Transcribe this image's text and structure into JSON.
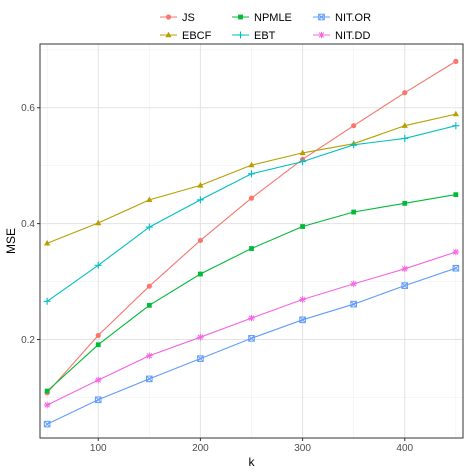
{
  "chart_data": {
    "type": "line",
    "xlabel": "k",
    "ylabel": "MSE",
    "xlim": [
      43,
      457
    ],
    "ylim": [
      0.03,
      0.71
    ],
    "x_ticks": [
      100,
      200,
      300,
      400
    ],
    "y_ticks": [
      0.2,
      0.4,
      0.6
    ],
    "y_tick_labels": [
      "0.2",
      "0.4",
      "0.6"
    ],
    "grid": true,
    "legend_position": "top",
    "x": [
      50,
      100,
      150,
      200,
      250,
      300,
      350,
      400,
      450
    ],
    "series": [
      {
        "name": "JS",
        "color": "#F8766D",
        "marker": "circle",
        "values": [
          0.108,
          0.207,
          0.292,
          0.371,
          0.444,
          0.511,
          0.569,
          0.626,
          0.68
        ]
      },
      {
        "name": "EBCF",
        "color": "#B79F00",
        "marker": "triangle",
        "values": [
          0.366,
          0.401,
          0.441,
          0.466,
          0.501,
          0.522,
          0.538,
          0.569,
          0.589
        ]
      },
      {
        "name": "NPMLE",
        "color": "#00BA38",
        "marker": "square",
        "values": [
          0.111,
          0.191,
          0.259,
          0.313,
          0.357,
          0.395,
          0.42,
          0.435,
          0.45
        ]
      },
      {
        "name": "EBT",
        "color": "#00BFC4",
        "marker": "plus",
        "values": [
          0.266,
          0.328,
          0.394,
          0.441,
          0.486,
          0.507,
          0.536,
          0.547,
          0.569
        ]
      },
      {
        "name": "NIT.OR",
        "color": "#619CFF",
        "marker": "boxed-x",
        "values": [
          0.054,
          0.096,
          0.132,
          0.167,
          0.202,
          0.234,
          0.261,
          0.293,
          0.323
        ]
      },
      {
        "name": "NIT.DD",
        "color": "#F564E3",
        "marker": "asterisk",
        "values": [
          0.087,
          0.13,
          0.172,
          0.204,
          0.237,
          0.269,
          0.296,
          0.322,
          0.351
        ]
      }
    ]
  }
}
